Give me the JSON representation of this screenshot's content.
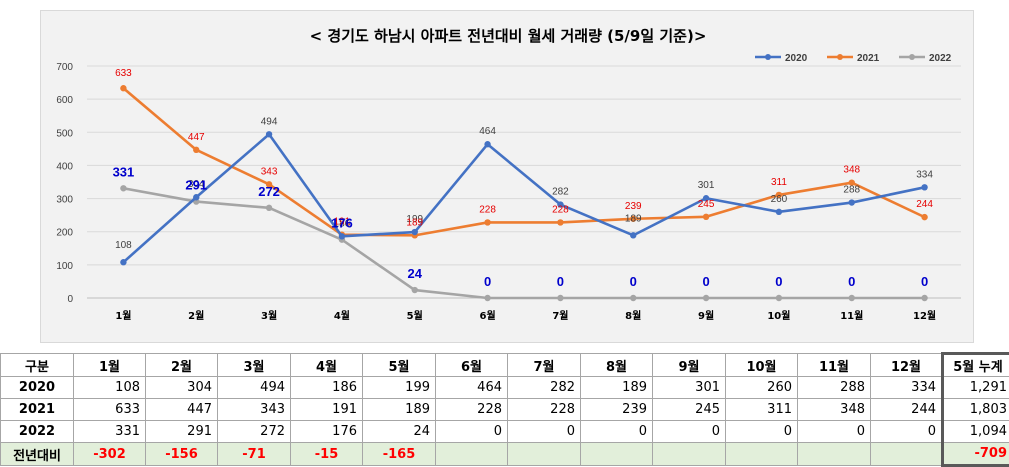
{
  "chart_data": {
    "type": "line",
    "title": "< 경기도 하남시  아파트 전년대비 월세 거래량 (5/9일 기준)>",
    "categories": [
      "1월",
      "2월",
      "3월",
      "4월",
      "5월",
      "6월",
      "7월",
      "8월",
      "9월",
      "10월",
      "11월",
      "12월"
    ],
    "ylim": [
      0,
      700
    ],
    "yticks": [
      0,
      100,
      200,
      300,
      400,
      500,
      600,
      700
    ],
    "grid": true,
    "legend_position": "top-right",
    "series": [
      {
        "name": "2020",
        "color": "#4472c4",
        "values": [
          108,
          304,
          494,
          186,
          199,
          464,
          282,
          189,
          301,
          260,
          288,
          334
        ]
      },
      {
        "name": "2021",
        "color": "#ed7d31",
        "values": [
          633,
          447,
          343,
          191,
          189,
          228,
          228,
          239,
          245,
          311,
          348,
          244
        ]
      },
      {
        "name": "2022",
        "color": "#a5a5a5",
        "values": [
          331,
          291,
          272,
          176,
          24,
          0,
          0,
          0,
          0,
          0,
          0,
          0
        ]
      }
    ]
  },
  "table": {
    "headers": [
      "구분",
      "1월",
      "2월",
      "3월",
      "4월",
      "5월",
      "6월",
      "7월",
      "8월",
      "9월",
      "10월",
      "11월",
      "12월",
      "5월 누계"
    ],
    "rows": [
      {
        "label": "2020",
        "cells": [
          "108",
          "304",
          "494",
          "186",
          "199",
          "464",
          "282",
          "189",
          "301",
          "260",
          "288",
          "334",
          "1,291"
        ]
      },
      {
        "label": "2021",
        "cells": [
          "633",
          "447",
          "343",
          "191",
          "189",
          "228",
          "228",
          "239",
          "245",
          "311",
          "348",
          "244",
          "1,803"
        ]
      },
      {
        "label": "2022",
        "cells": [
          "331",
          "291",
          "272",
          "176",
          "24",
          "0",
          "0",
          "0",
          "0",
          "0",
          "0",
          "0",
          "1,094"
        ]
      },
      {
        "label": "전년대비",
        "cells": [
          "-302",
          "-156",
          "-71",
          "-15",
          "-165",
          "",
          "",
          "",
          "",
          "",
          "",
          "",
          "-709"
        ]
      }
    ]
  }
}
